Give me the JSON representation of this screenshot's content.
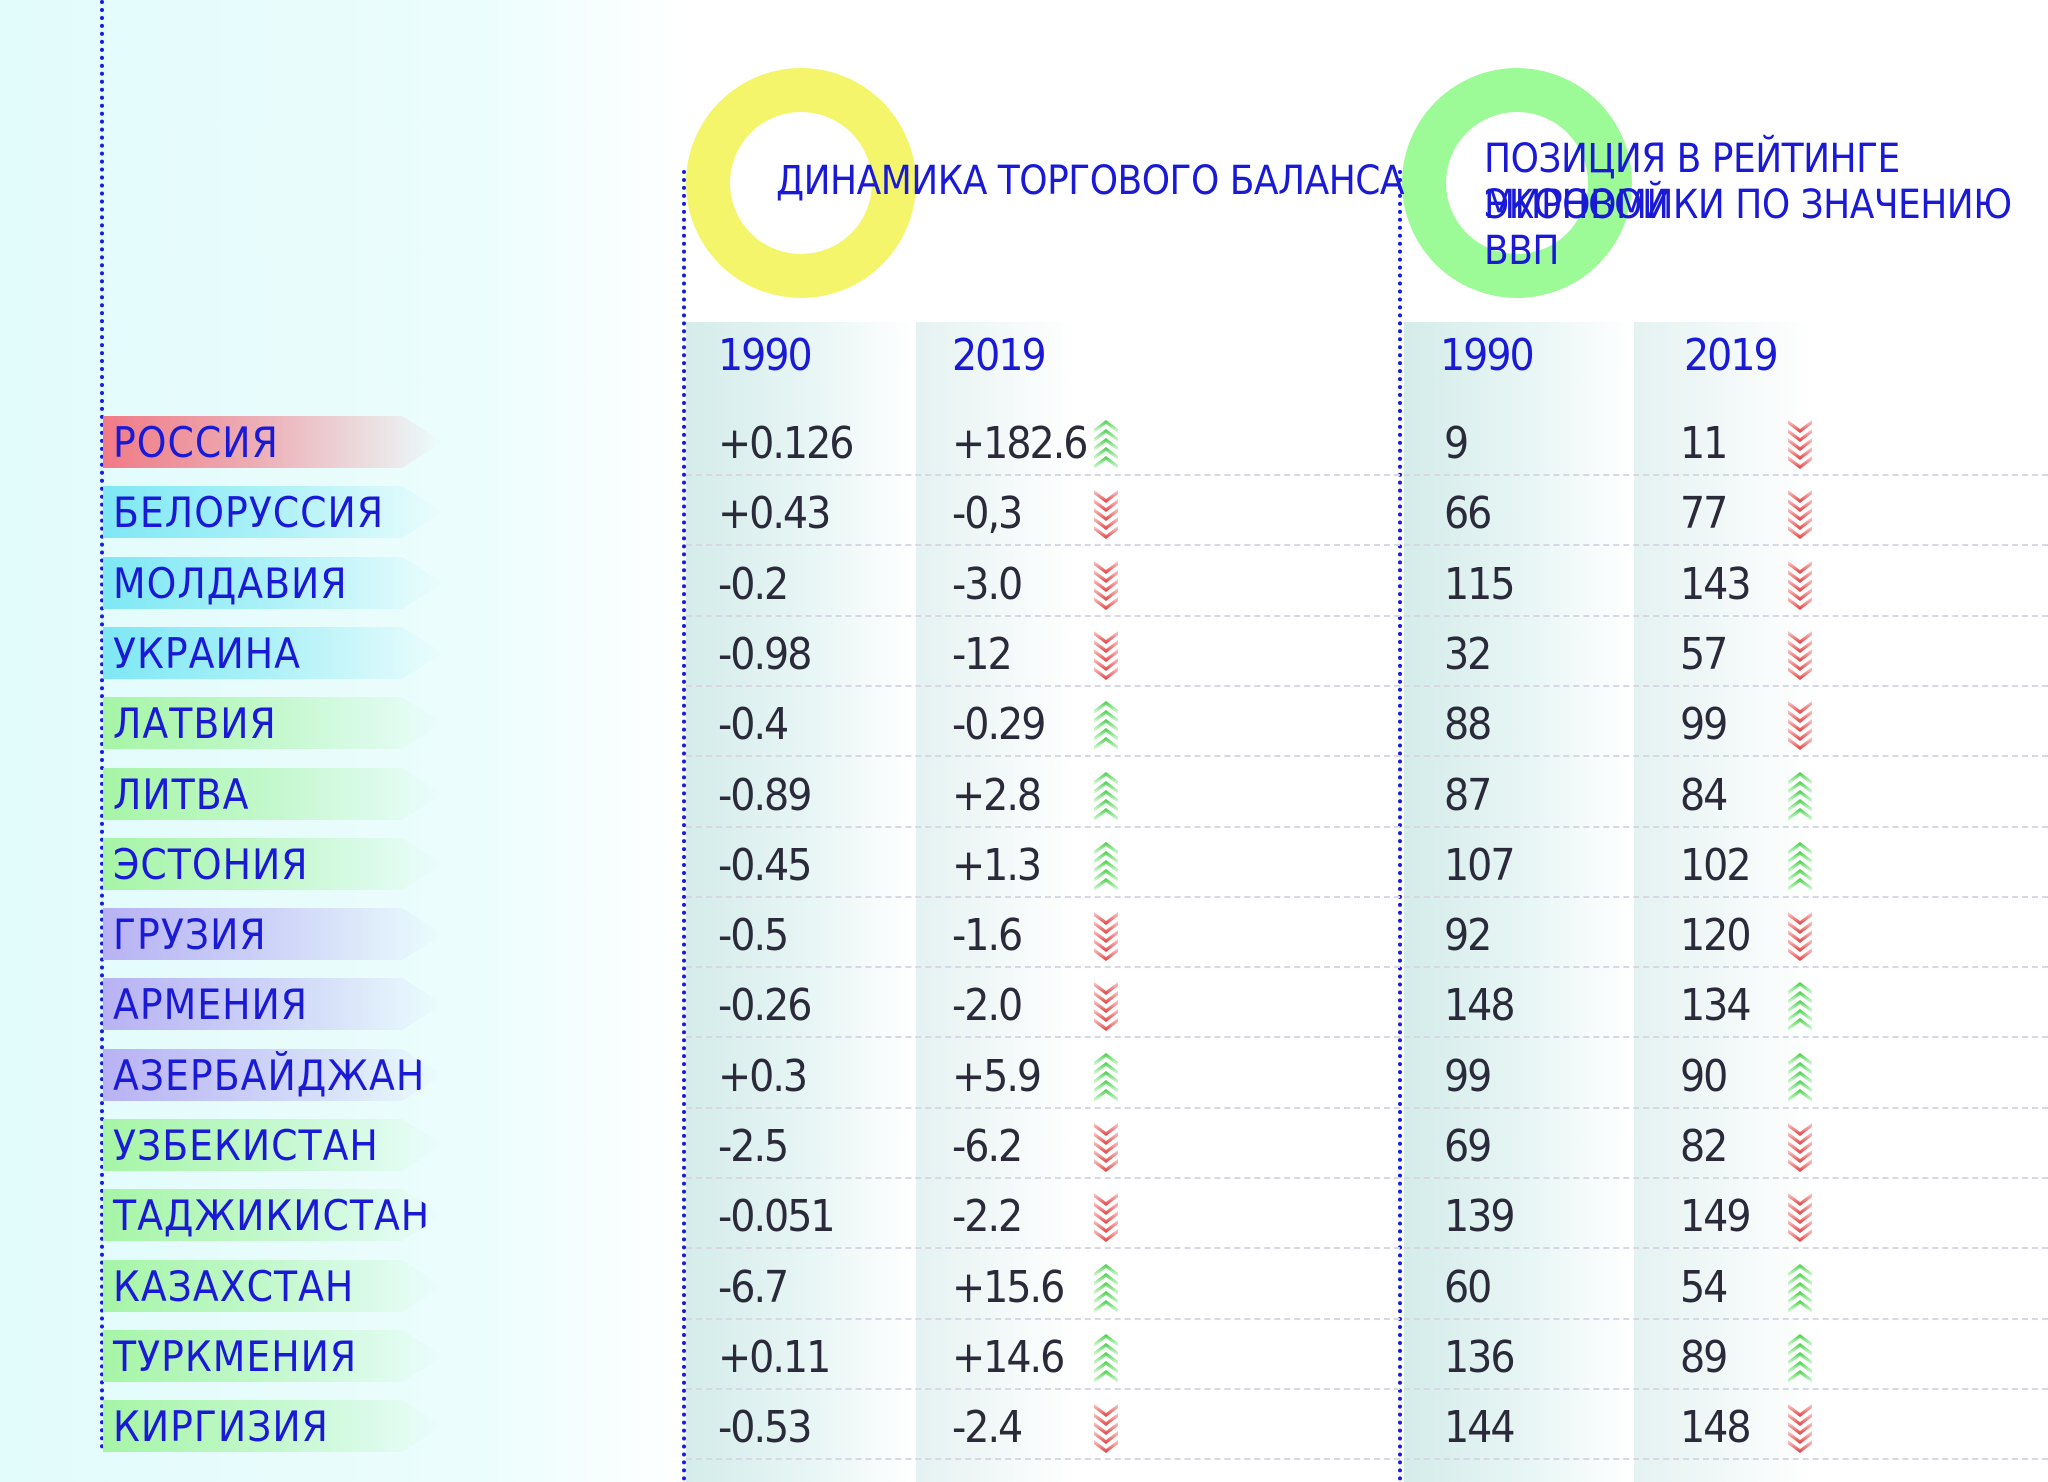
{
  "headers": {
    "trade_balance_title": "Динамика торгового баланса",
    "gdp_rank_title_line1": "Позиция в рейтинге мировой",
    "gdp_rank_title_line2": "экономики по значению ВВП"
  },
  "columns": {
    "trade_1990": "1990",
    "trade_2019": "2019",
    "rank_1990": "1990",
    "rank_2019": "2019"
  },
  "colors": {
    "text_blue": "#1a1ad6",
    "dotted_line": "#1a1ae6",
    "ring_yellow": "#f4f56a",
    "ring_green": "#9dfb97",
    "arrow_up": "#3fcf3f",
    "arrow_down": "#e23b3b"
  },
  "rows": [
    {
      "country": "Россия",
      "trade_1990": "+0.126",
      "trade_2019": "+182.6",
      "trade_trend": "up",
      "rank_1990": "9",
      "rank_2019": "11",
      "rank_trend": "down",
      "label_color": "#f07a86"
    },
    {
      "country": "Белоруссия",
      "trade_1990": "+0.43",
      "trade_2019": "-0,3",
      "trade_trend": "down",
      "rank_1990": "66",
      "rank_2019": "77",
      "rank_trend": "down",
      "label_color": "#7ee8f4"
    },
    {
      "country": "Молдавия",
      "trade_1990": "-0.2",
      "trade_2019": "-3.0",
      "trade_trend": "down",
      "rank_1990": "115",
      "rank_2019": "143",
      "rank_trend": "down",
      "label_color": "#7ee8f4"
    },
    {
      "country": "Украина",
      "trade_1990": "-0.98",
      "trade_2019": "-12",
      "trade_trend": "down",
      "rank_1990": "32",
      "rank_2019": "57",
      "rank_trend": "down",
      "label_color": "#7ee8f4"
    },
    {
      "country": "Латвия",
      "trade_1990": "-0.4",
      "trade_2019": "-0.29",
      "trade_trend": "up",
      "rank_1990": "88",
      "rank_2019": "99",
      "rank_trend": "down",
      "label_color": "#a6f5a6"
    },
    {
      "country": "Литва",
      "trade_1990": "-0.89",
      "trade_2019": "+2.8",
      "trade_trend": "up",
      "rank_1990": "87",
      "rank_2019": "84",
      "rank_trend": "up",
      "label_color": "#a6f5a6"
    },
    {
      "country": "Эстония",
      "trade_1990": "-0.45",
      "trade_2019": "+1.3",
      "trade_trend": "up",
      "rank_1990": "107",
      "rank_2019": "102",
      "rank_trend": "up",
      "label_color": "#a6f5a6"
    },
    {
      "country": "Грузия",
      "trade_1990": "-0.5",
      "trade_2019": "-1.6",
      "trade_trend": "down",
      "rank_1990": "92",
      "rank_2019": "120",
      "rank_trend": "down",
      "label_color": "#b8b2f4"
    },
    {
      "country": "Армения",
      "trade_1990": "-0.26",
      "trade_2019": "-2.0",
      "trade_trend": "down",
      "rank_1990": "148",
      "rank_2019": "134",
      "rank_trend": "up",
      "label_color": "#b8b2f4"
    },
    {
      "country": "Азербайджан",
      "trade_1990": "+0.3",
      "trade_2019": "+5.9",
      "trade_trend": "up",
      "rank_1990": "99",
      "rank_2019": "90",
      "rank_trend": "up",
      "label_color": "#b8b2f4"
    },
    {
      "country": "Узбекистан",
      "trade_1990": "-2.5",
      "trade_2019": "-6.2",
      "trade_trend": "down",
      "rank_1990": "69",
      "rank_2019": "82",
      "rank_trend": "down",
      "label_color": "#a6f5a6"
    },
    {
      "country": "Таджикистан",
      "trade_1990": "-0.051",
      "trade_2019": "-2.2",
      "trade_trend": "down",
      "rank_1990": "139",
      "rank_2019": "149",
      "rank_trend": "down",
      "label_color": "#a6f5a6"
    },
    {
      "country": "Казахстан",
      "trade_1990": "-6.7",
      "trade_2019": "+15.6",
      "trade_trend": "up",
      "rank_1990": "60",
      "rank_2019": "54",
      "rank_trend": "up",
      "label_color": "#a6f5a6"
    },
    {
      "country": "Туркмения",
      "trade_1990": "+0.11",
      "trade_2019": "+14.6",
      "trade_trend": "up",
      "rank_1990": "136",
      "rank_2019": "89",
      "rank_trend": "up",
      "label_color": "#a6f5a6"
    },
    {
      "country": "Киргизия",
      "trade_1990": "-0.53",
      "trade_2019": "-2.4",
      "trade_trend": "down",
      "rank_1990": "144",
      "rank_2019": "148",
      "rank_trend": "down",
      "label_color": "#a6f5a6"
    }
  ]
}
